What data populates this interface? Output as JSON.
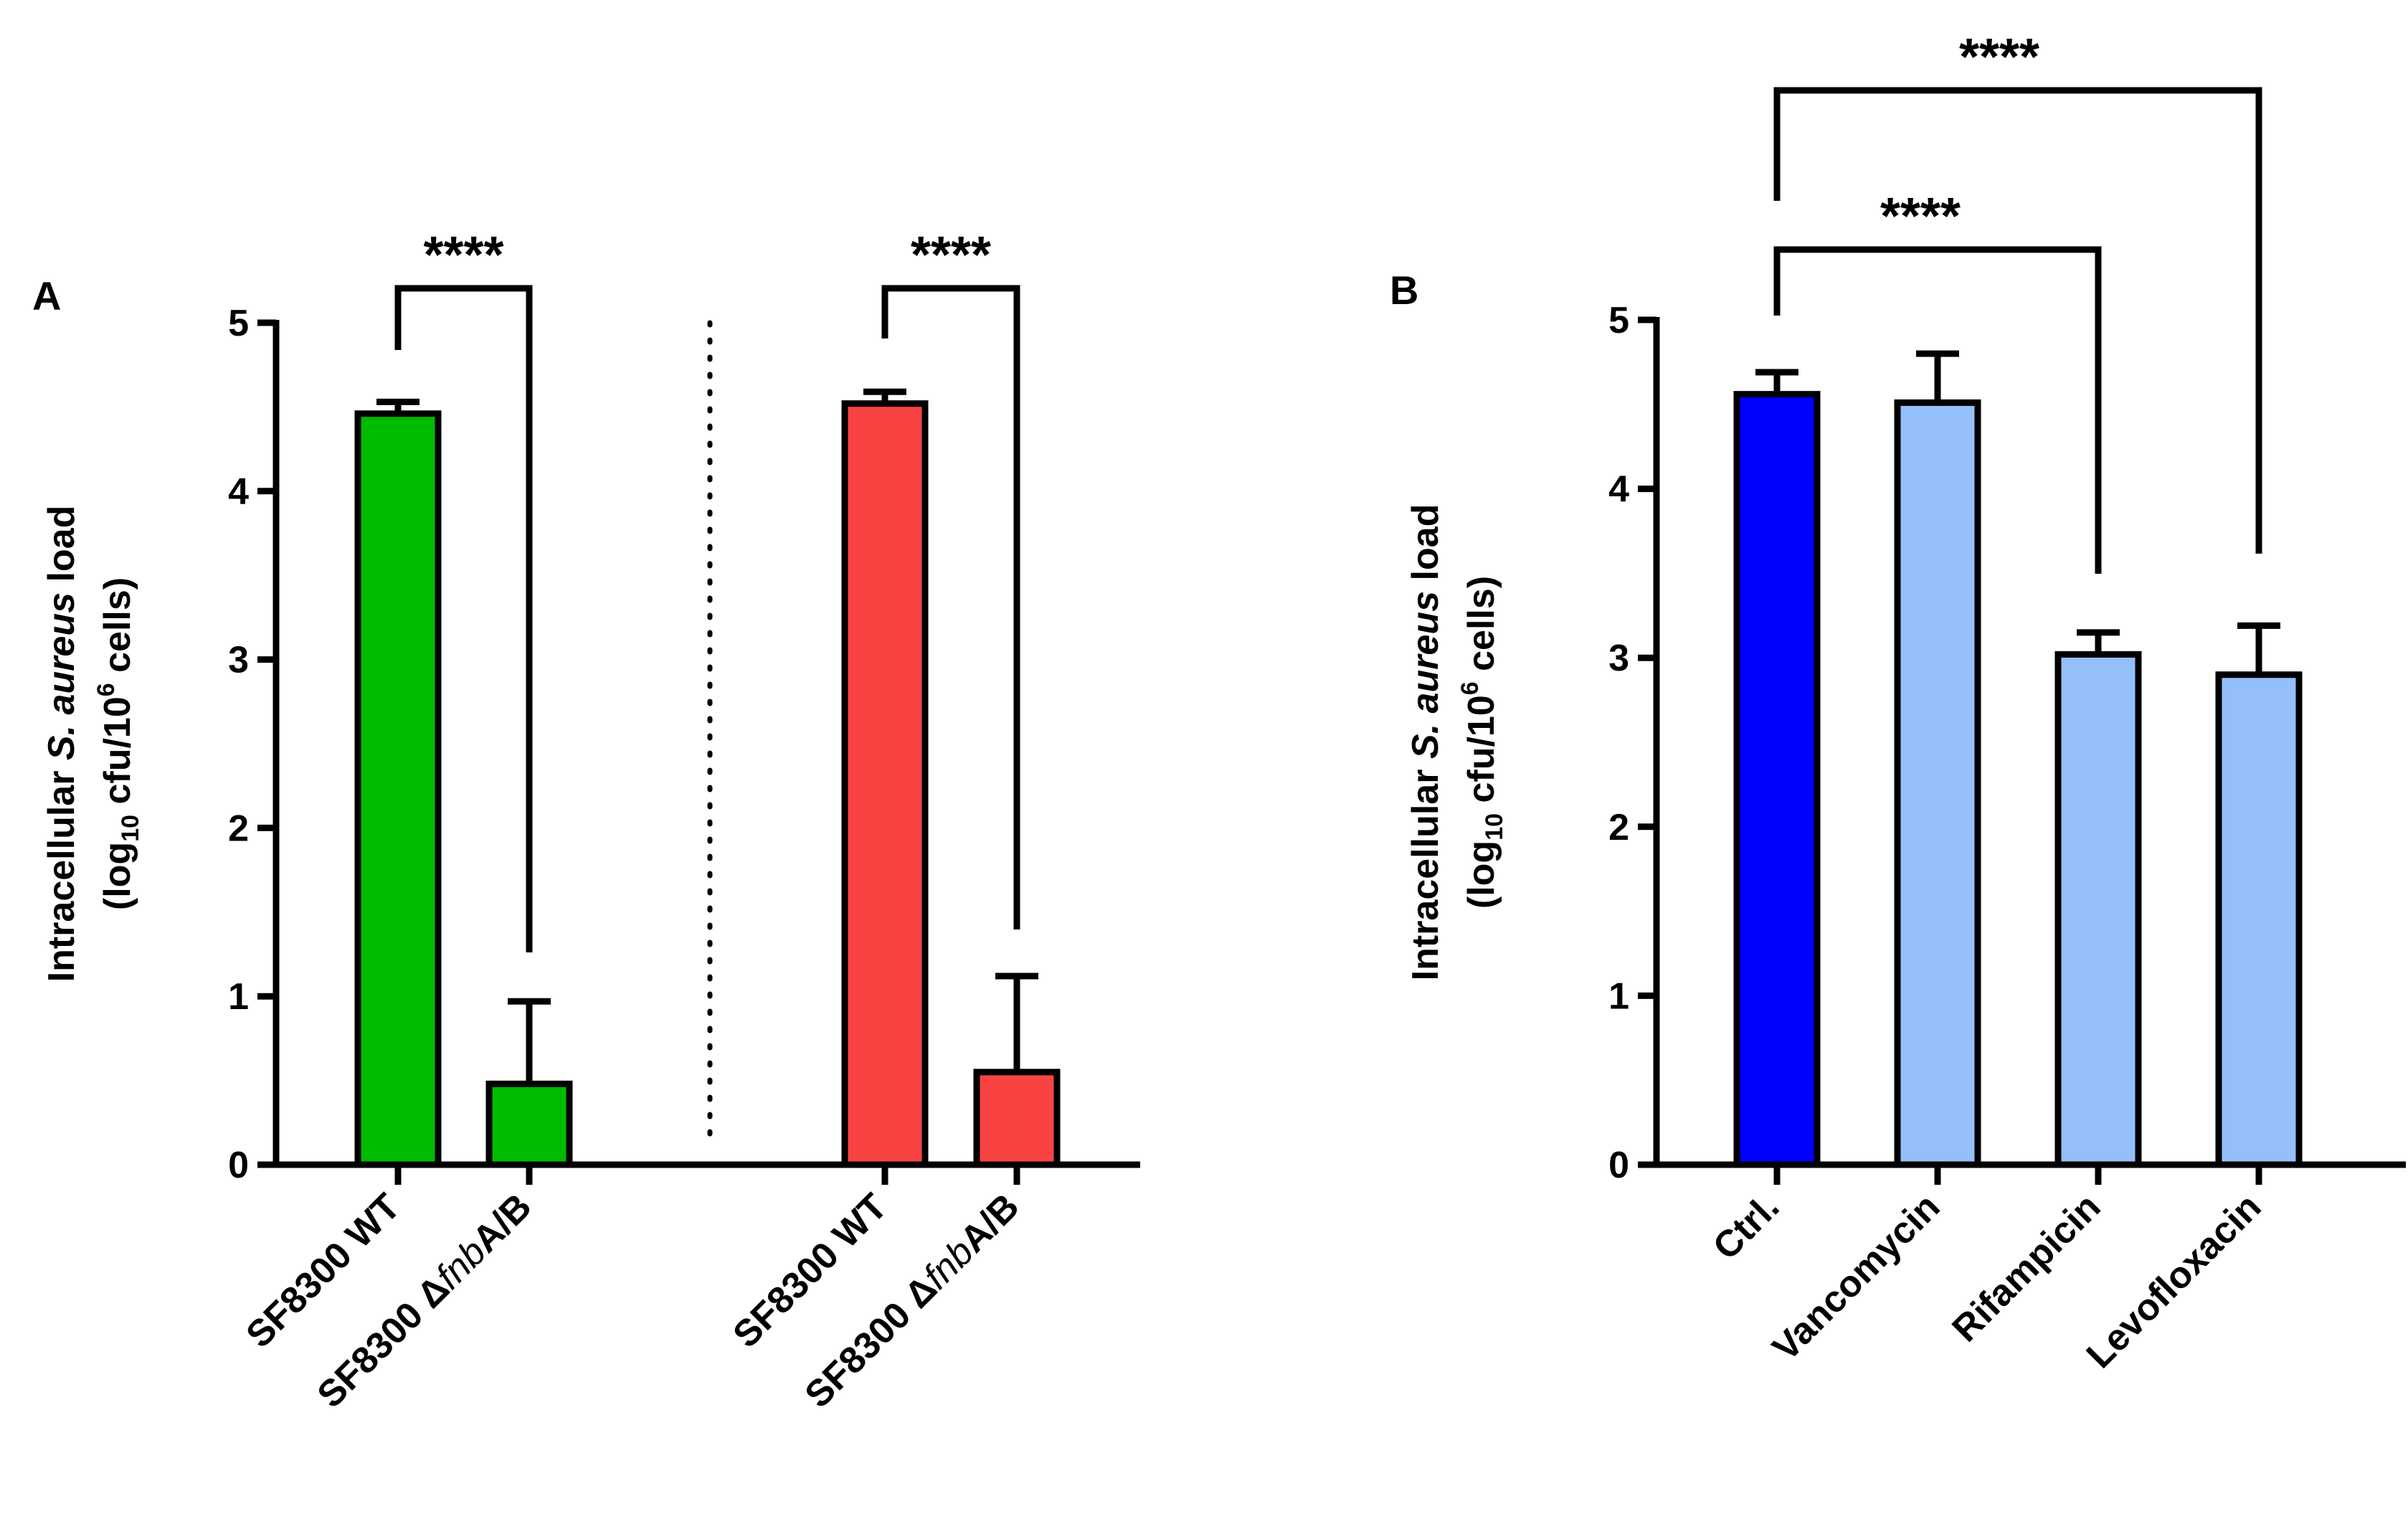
{
  "chart_data": [
    {
      "type": "bar",
      "panel_label": "A",
      "ylabel": {
        "line1_pre": "Intracellular ",
        "line1_italic": "S. aureus",
        "line1_post": " load",
        "line2_pre": "(log",
        "line2_sub": "10",
        "line2_mid": " cfu/10",
        "line2_sup": "6",
        "line2_post": " cells)"
      },
      "ylim": [
        0,
        5
      ],
      "yticks": [
        "0",
        "1",
        "2",
        "3",
        "4",
        "5"
      ],
      "groups": [
        {
          "categories": [
            {
              "pre": "SF8300 WT",
              "italic": "",
              "post": ""
            },
            {
              "pre": "SF8300 Δ",
              "italic": "fnb",
              "post": "A/B"
            }
          ],
          "values": [
            4.46,
            0.48
          ],
          "errors": [
            0.07,
            0.49
          ],
          "color": "#00bb00"
        },
        {
          "categories": [
            {
              "pre": "SF8300 WT",
              "italic": "",
              "post": ""
            },
            {
              "pre": "SF8300 Δ",
              "italic": "fnb",
              "post": "A/B"
            }
          ],
          "values": [
            4.52,
            0.55
          ],
          "errors": [
            0.07,
            0.57
          ],
          "color": "#f94343"
        }
      ],
      "significance": [
        "****",
        "****"
      ]
    },
    {
      "type": "bar",
      "panel_label": "B",
      "ylabel": {
        "line1_pre": "Intracellular ",
        "line1_italic": "S. aureus",
        "line1_post": " load",
        "line2_pre": "(log",
        "line2_sub": "10",
        "line2_mid": " cfu/10",
        "line2_sup": "6",
        "line2_post": " cells)"
      },
      "ylim": [
        0,
        5
      ],
      "yticks": [
        "0",
        "1",
        "2",
        "3",
        "4",
        "5"
      ],
      "categories": [
        "Ctrl.",
        "Vancomycin",
        "Rifampicin",
        "Levofloxacin"
      ],
      "values": [
        4.56,
        4.51,
        3.02,
        2.9
      ],
      "errors": [
        0.13,
        0.29,
        0.13,
        0.29
      ],
      "colors": [
        "#0000ff",
        "#94bff8",
        "#94bff8",
        "#94bff8"
      ],
      "significance": [
        {
          "label": "****",
          "from": "Ctrl.",
          "to": "Rifampicin"
        },
        {
          "label": "****",
          "from": "Ctrl.",
          "to": "Levofloxacin"
        }
      ]
    }
  ]
}
